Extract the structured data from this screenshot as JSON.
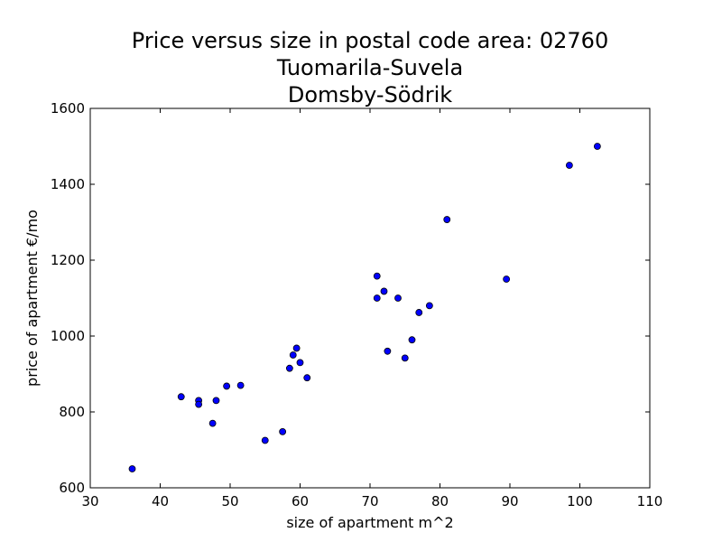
{
  "chart_data": {
    "type": "scatter",
    "title_lines": [
      "Price versus size in postal code area: 02760",
      "Tuomarila-Suvela",
      "Domsby-Södrik"
    ],
    "xlabel": "size of apartment m^2",
    "ylabel": "price of apartment €/mo",
    "xlim": [
      30,
      110
    ],
    "ylim": [
      600,
      1600
    ],
    "xticks": [
      30,
      40,
      50,
      60,
      70,
      80,
      90,
      100,
      110
    ],
    "yticks": [
      600,
      800,
      1000,
      1200,
      1400,
      1600
    ],
    "grid": false,
    "marker_color": "#0000ff",
    "points": [
      {
        "x": 36,
        "y": 650
      },
      {
        "x": 43,
        "y": 840
      },
      {
        "x": 45.5,
        "y": 830
      },
      {
        "x": 45.5,
        "y": 820
      },
      {
        "x": 47.5,
        "y": 770
      },
      {
        "x": 48,
        "y": 830
      },
      {
        "x": 49.5,
        "y": 868
      },
      {
        "x": 51.5,
        "y": 870
      },
      {
        "x": 55,
        "y": 725
      },
      {
        "x": 57.5,
        "y": 748
      },
      {
        "x": 58.5,
        "y": 915
      },
      {
        "x": 59,
        "y": 950
      },
      {
        "x": 59.5,
        "y": 968
      },
      {
        "x": 60,
        "y": 930
      },
      {
        "x": 61,
        "y": 890
      },
      {
        "x": 71,
        "y": 1158
      },
      {
        "x": 71,
        "y": 1100
      },
      {
        "x": 72,
        "y": 1118
      },
      {
        "x": 72.5,
        "y": 960
      },
      {
        "x": 74,
        "y": 1100
      },
      {
        "x": 75,
        "y": 942
      },
      {
        "x": 76,
        "y": 990
      },
      {
        "x": 77,
        "y": 1062
      },
      {
        "x": 78.5,
        "y": 1080
      },
      {
        "x": 81,
        "y": 1307
      },
      {
        "x": 89.5,
        "y": 1150
      },
      {
        "x": 98.5,
        "y": 1450
      },
      {
        "x": 102.5,
        "y": 1500
      }
    ]
  }
}
